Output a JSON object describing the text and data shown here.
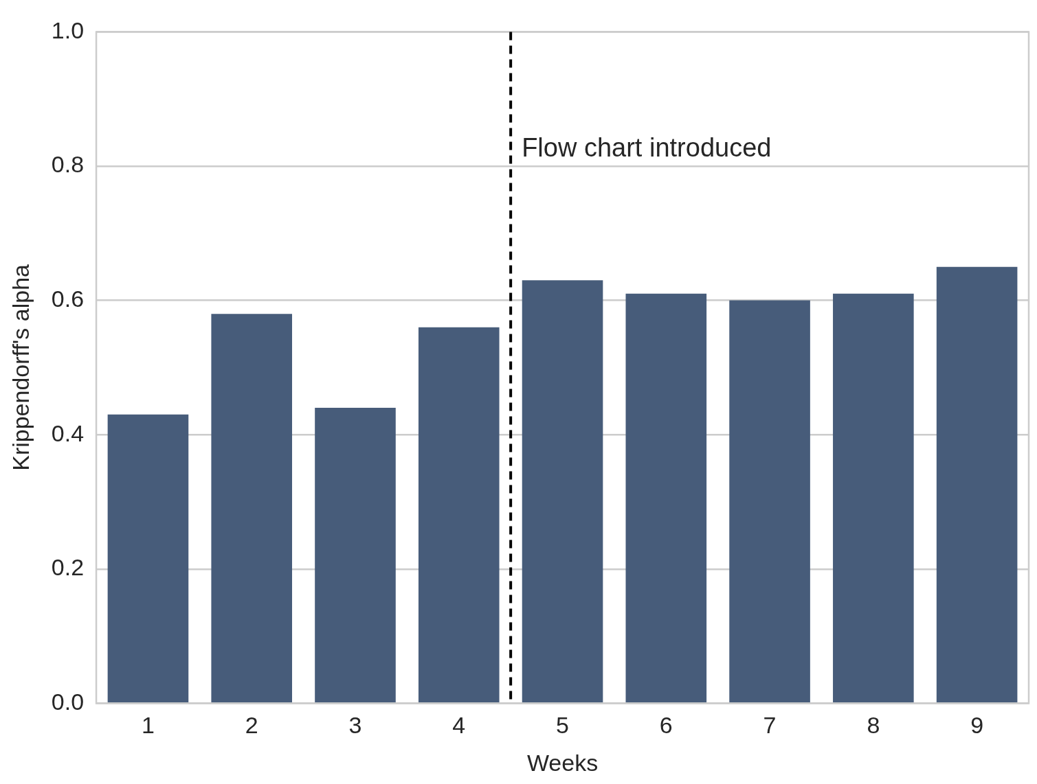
{
  "chart_data": {
    "type": "bar",
    "xlabel": "Weeks",
    "ylabel": "Krippendorff's alpha",
    "x": [
      1,
      2,
      3,
      4,
      5,
      6,
      7,
      8,
      9
    ],
    "values": [
      0.43,
      0.58,
      0.44,
      0.56,
      0.63,
      0.61,
      0.6,
      0.61,
      0.65
    ],
    "color": "#475c7a",
    "xlim": [
      0.5,
      9.5
    ],
    "xticks": [
      1,
      2,
      3,
      4,
      5,
      6,
      7,
      8,
      9
    ],
    "ylim": [
      0,
      1
    ],
    "yticks": [
      {
        "value": 0,
        "label": "0.0"
      },
      {
        "value": 0.2,
        "label": "0.2"
      },
      {
        "value": 0.4,
        "label": "0.4"
      },
      {
        "value": 0.6,
        "label": "0.6"
      },
      {
        "value": 0.8,
        "label": "0.8"
      },
      {
        "value": 1,
        "label": "1.0"
      }
    ],
    "grid": "y",
    "ref_lines": [
      {
        "axis": "x",
        "value": 4.5,
        "label": "Flow chart introduced",
        "color": "#000000",
        "line_style": "dashed"
      }
    ]
  }
}
